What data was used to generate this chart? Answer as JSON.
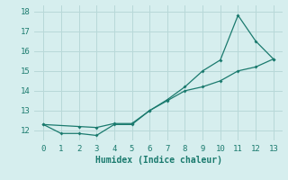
{
  "line1_x": [
    0,
    1,
    2,
    3,
    4,
    5,
    6,
    7,
    8,
    9,
    10,
    11,
    12,
    13
  ],
  "line1_y": [
    12.3,
    11.85,
    11.85,
    11.75,
    12.3,
    12.3,
    13.0,
    13.55,
    14.2,
    15.0,
    15.55,
    17.8,
    16.5,
    15.6
  ],
  "line2_x": [
    0,
    2,
    3,
    4,
    5,
    6,
    7,
    8,
    9,
    10,
    11,
    12,
    13
  ],
  "line2_y": [
    12.3,
    12.2,
    12.15,
    12.35,
    12.35,
    13.0,
    13.5,
    14.0,
    14.2,
    14.5,
    15.0,
    15.2,
    15.6
  ],
  "line_color": "#1a7a6e",
  "bg_color": "#d6eeee",
  "grid_color": "#b8d8d8",
  "xlabel": "Humidex (Indice chaleur)",
  "xlim": [
    -0.5,
    13.5
  ],
  "ylim": [
    11.5,
    18.3
  ],
  "yticks": [
    12,
    13,
    14,
    15,
    16,
    17,
    18
  ],
  "xticks": [
    0,
    1,
    2,
    3,
    4,
    5,
    6,
    7,
    8,
    9,
    10,
    11,
    12,
    13
  ],
  "xlabel_fontsize": 7,
  "tick_fontsize": 6.5
}
